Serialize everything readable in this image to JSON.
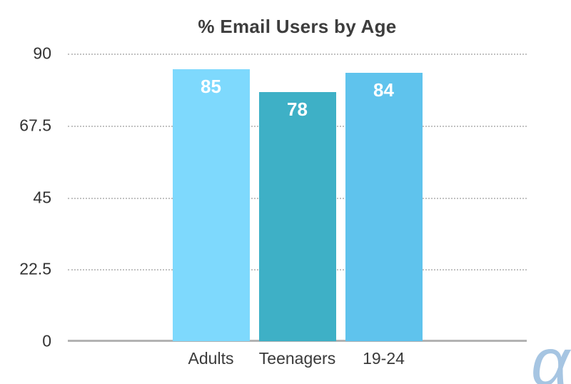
{
  "chart_data": {
    "type": "bar",
    "title": "% Email Users by Age",
    "categories": [
      "Adults",
      "Teenagers",
      "19-24"
    ],
    "values": [
      85,
      78,
      84
    ],
    "bar_colors": [
      "#7ed9fd",
      "#3eb0c6",
      "#5fc3ed"
    ],
    "value_label_color": "#ffffff",
    "xlabel": "",
    "ylabel": "",
    "ylim": [
      0,
      90
    ],
    "yticks": [
      90,
      67.5,
      45,
      22.5,
      0
    ],
    "grid": "horizontal dotted gridlines at each y tick, solid axis line at 0",
    "legend": "none"
  },
  "branding": {
    "logo_glyph": "α",
    "logo_color": "#a6c5e2"
  }
}
